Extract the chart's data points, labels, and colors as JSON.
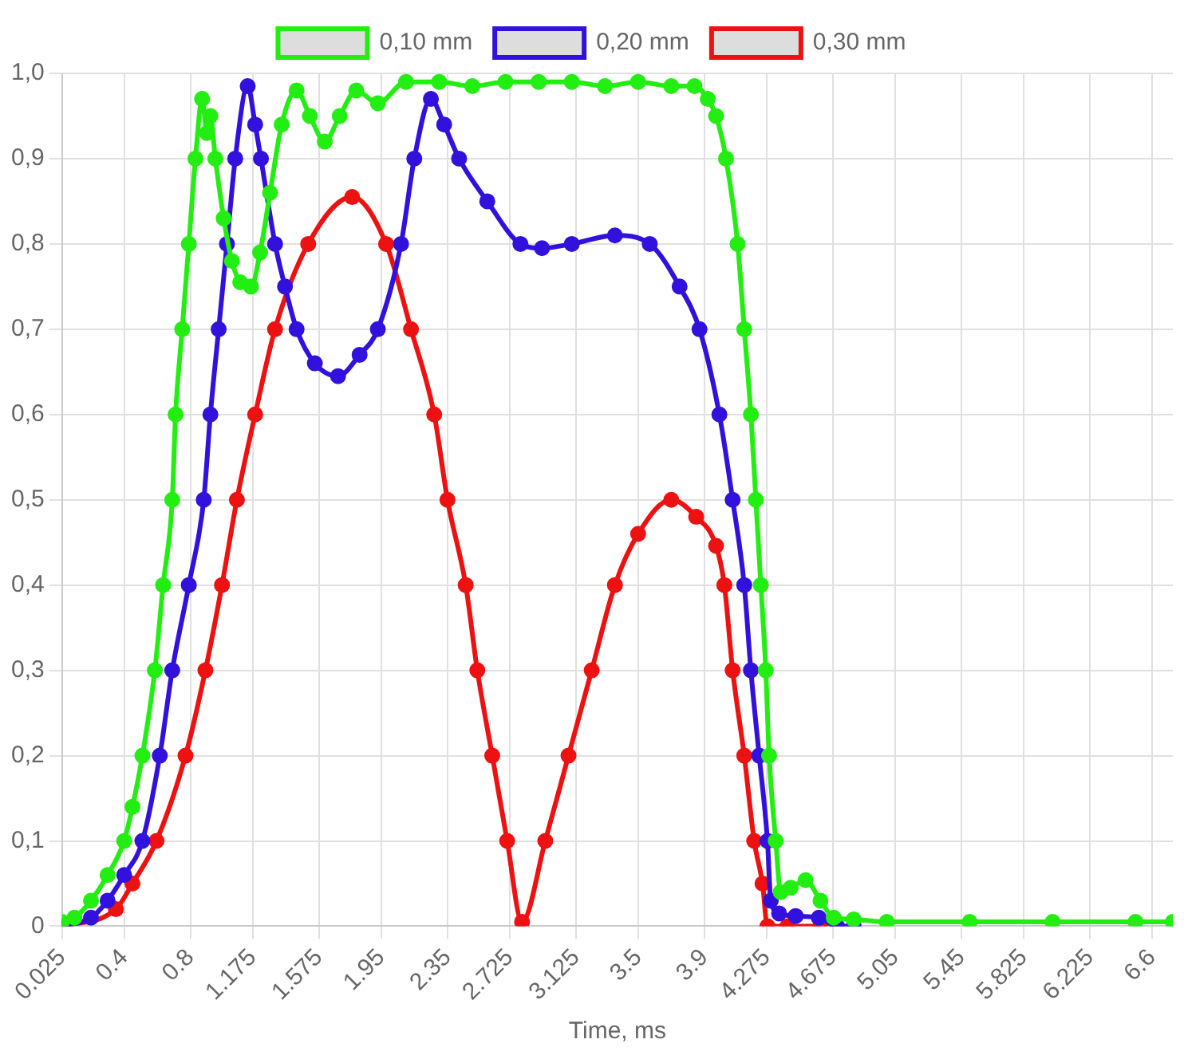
{
  "chart_data": {
    "type": "line",
    "xlabel": "Time, ms",
    "legend": "top",
    "grid": true,
    "marker": "circle",
    "line_style": "solid",
    "xlim": [
      0.025,
      6.725
    ],
    "xticks": [
      0.025,
      0.4,
      0.8,
      1.175,
      1.575,
      1.95,
      2.35,
      2.725,
      3.125,
      3.5,
      3.9,
      4.275,
      4.675,
      5.05,
      5.45,
      5.825,
      6.225,
      6.6
    ],
    "ylim": [
      0,
      1
    ],
    "yticks": [
      {
        "value": 0,
        "label": "0"
      },
      {
        "value": 0.1,
        "label": "0,1"
      },
      {
        "value": 0.2,
        "label": "0,2"
      },
      {
        "value": 0.3,
        "label": "0,3"
      },
      {
        "value": 0.4,
        "label": "0,4"
      },
      {
        "value": 0.5,
        "label": "0,5"
      },
      {
        "value": 0.6,
        "label": "0,6"
      },
      {
        "value": 0.7,
        "label": "0,7"
      },
      {
        "value": 0.8,
        "label": "0,8"
      },
      {
        "value": 0.9,
        "label": "0,9"
      },
      {
        "value": 1,
        "label": "1,0"
      }
    ],
    "series": [
      {
        "name": "0,10 mm",
        "color": "#22ee11",
        "x": [
          0.025,
          0.1,
          0.2,
          0.3,
          0.4,
          0.45,
          0.51,
          0.585,
          0.635,
          0.69,
          0.71,
          0.75,
          0.79,
          0.83,
          0.87,
          0.9,
          0.92,
          0.95,
          1.0,
          1.05,
          1.1,
          1.165,
          1.22,
          1.28,
          1.35,
          1.44,
          1.52,
          1.61,
          1.7,
          1.8,
          1.93,
          2.1,
          2.3,
          2.5,
          2.7,
          2.9,
          3.1,
          3.3,
          3.5,
          3.7,
          3.84,
          3.92,
          3.97,
          4.03,
          4.1,
          4.14,
          4.18,
          4.21,
          4.24,
          4.27,
          4.29,
          4.33,
          4.36,
          4.42,
          4.51,
          4.6,
          4.68,
          4.8,
          5.0,
          5.5,
          6.0,
          6.5,
          6.725
        ],
        "values": [
          0.005,
          0.01,
          0.03,
          0.06,
          0.1,
          0.14,
          0.2,
          0.3,
          0.4,
          0.5,
          0.6,
          0.7,
          0.8,
          0.9,
          0.97,
          0.93,
          0.95,
          0.9,
          0.83,
          0.78,
          0.755,
          0.75,
          0.79,
          0.86,
          0.94,
          0.98,
          0.95,
          0.92,
          0.95,
          0.98,
          0.965,
          0.99,
          0.99,
          0.985,
          0.99,
          0.99,
          0.99,
          0.985,
          0.99,
          0.985,
          0.985,
          0.97,
          0.95,
          0.9,
          0.8,
          0.7,
          0.6,
          0.5,
          0.4,
          0.3,
          0.2,
          0.1,
          0.04,
          0.045,
          0.054,
          0.03,
          0.01,
          0.008,
          0.005,
          0.005,
          0.005,
          0.005,
          0.005
        ]
      },
      {
        "name": "0,20 mm",
        "color": "#3311dd",
        "x": [
          0.025,
          0.2,
          0.3,
          0.4,
          0.51,
          0.615,
          0.69,
          0.79,
          0.88,
          0.92,
          0.97,
          1.02,
          1.07,
          1.145,
          1.19,
          1.225,
          1.31,
          1.37,
          1.44,
          1.55,
          1.69,
          1.82,
          1.93,
          2.07,
          2.15,
          2.25,
          2.33,
          2.42,
          2.59,
          2.79,
          2.92,
          3.1,
          3.36,
          3.57,
          3.75,
          3.87,
          3.99,
          4.07,
          4.14,
          4.18,
          4.23,
          4.28,
          4.3,
          4.35,
          4.45,
          4.59,
          4.7,
          4.8
        ],
        "values": [
          0,
          0.01,
          0.03,
          0.06,
          0.1,
          0.2,
          0.3,
          0.4,
          0.5,
          0.6,
          0.7,
          0.8,
          0.9,
          0.985,
          0.94,
          0.9,
          0.8,
          0.75,
          0.7,
          0.66,
          0.645,
          0.67,
          0.7,
          0.8,
          0.9,
          0.97,
          0.94,
          0.9,
          0.85,
          0.8,
          0.795,
          0.8,
          0.81,
          0.8,
          0.75,
          0.7,
          0.6,
          0.5,
          0.4,
          0.3,
          0.2,
          0.1,
          0.03,
          0.015,
          0.012,
          0.01,
          0,
          0
        ]
      },
      {
        "name": "0,30 mm",
        "color": "#ee1111",
        "x": [
          0.025,
          0.35,
          0.45,
          0.595,
          0.77,
          0.89,
          0.99,
          1.08,
          1.19,
          1.31,
          1.51,
          1.775,
          1.98,
          2.13,
          2.27,
          2.35,
          2.46,
          2.53,
          2.62,
          2.71,
          2.8,
          2.94,
          3.08,
          3.22,
          3.36,
          3.5,
          3.7,
          3.85,
          3.97,
          4.02,
          4.07,
          4.14,
          4.2,
          4.25,
          4.28,
          4.4,
          4.6
        ],
        "values": [
          0,
          0.02,
          0.05,
          0.1,
          0.2,
          0.3,
          0.4,
          0.5,
          0.6,
          0.7,
          0.8,
          0.855,
          0.8,
          0.7,
          0.6,
          0.5,
          0.4,
          0.3,
          0.2,
          0.1,
          0.005,
          0.1,
          0.2,
          0.3,
          0.4,
          0.46,
          0.5,
          0.48,
          0.446,
          0.4,
          0.3,
          0.2,
          0.1,
          0.05,
          0,
          0,
          0
        ]
      }
    ]
  }
}
